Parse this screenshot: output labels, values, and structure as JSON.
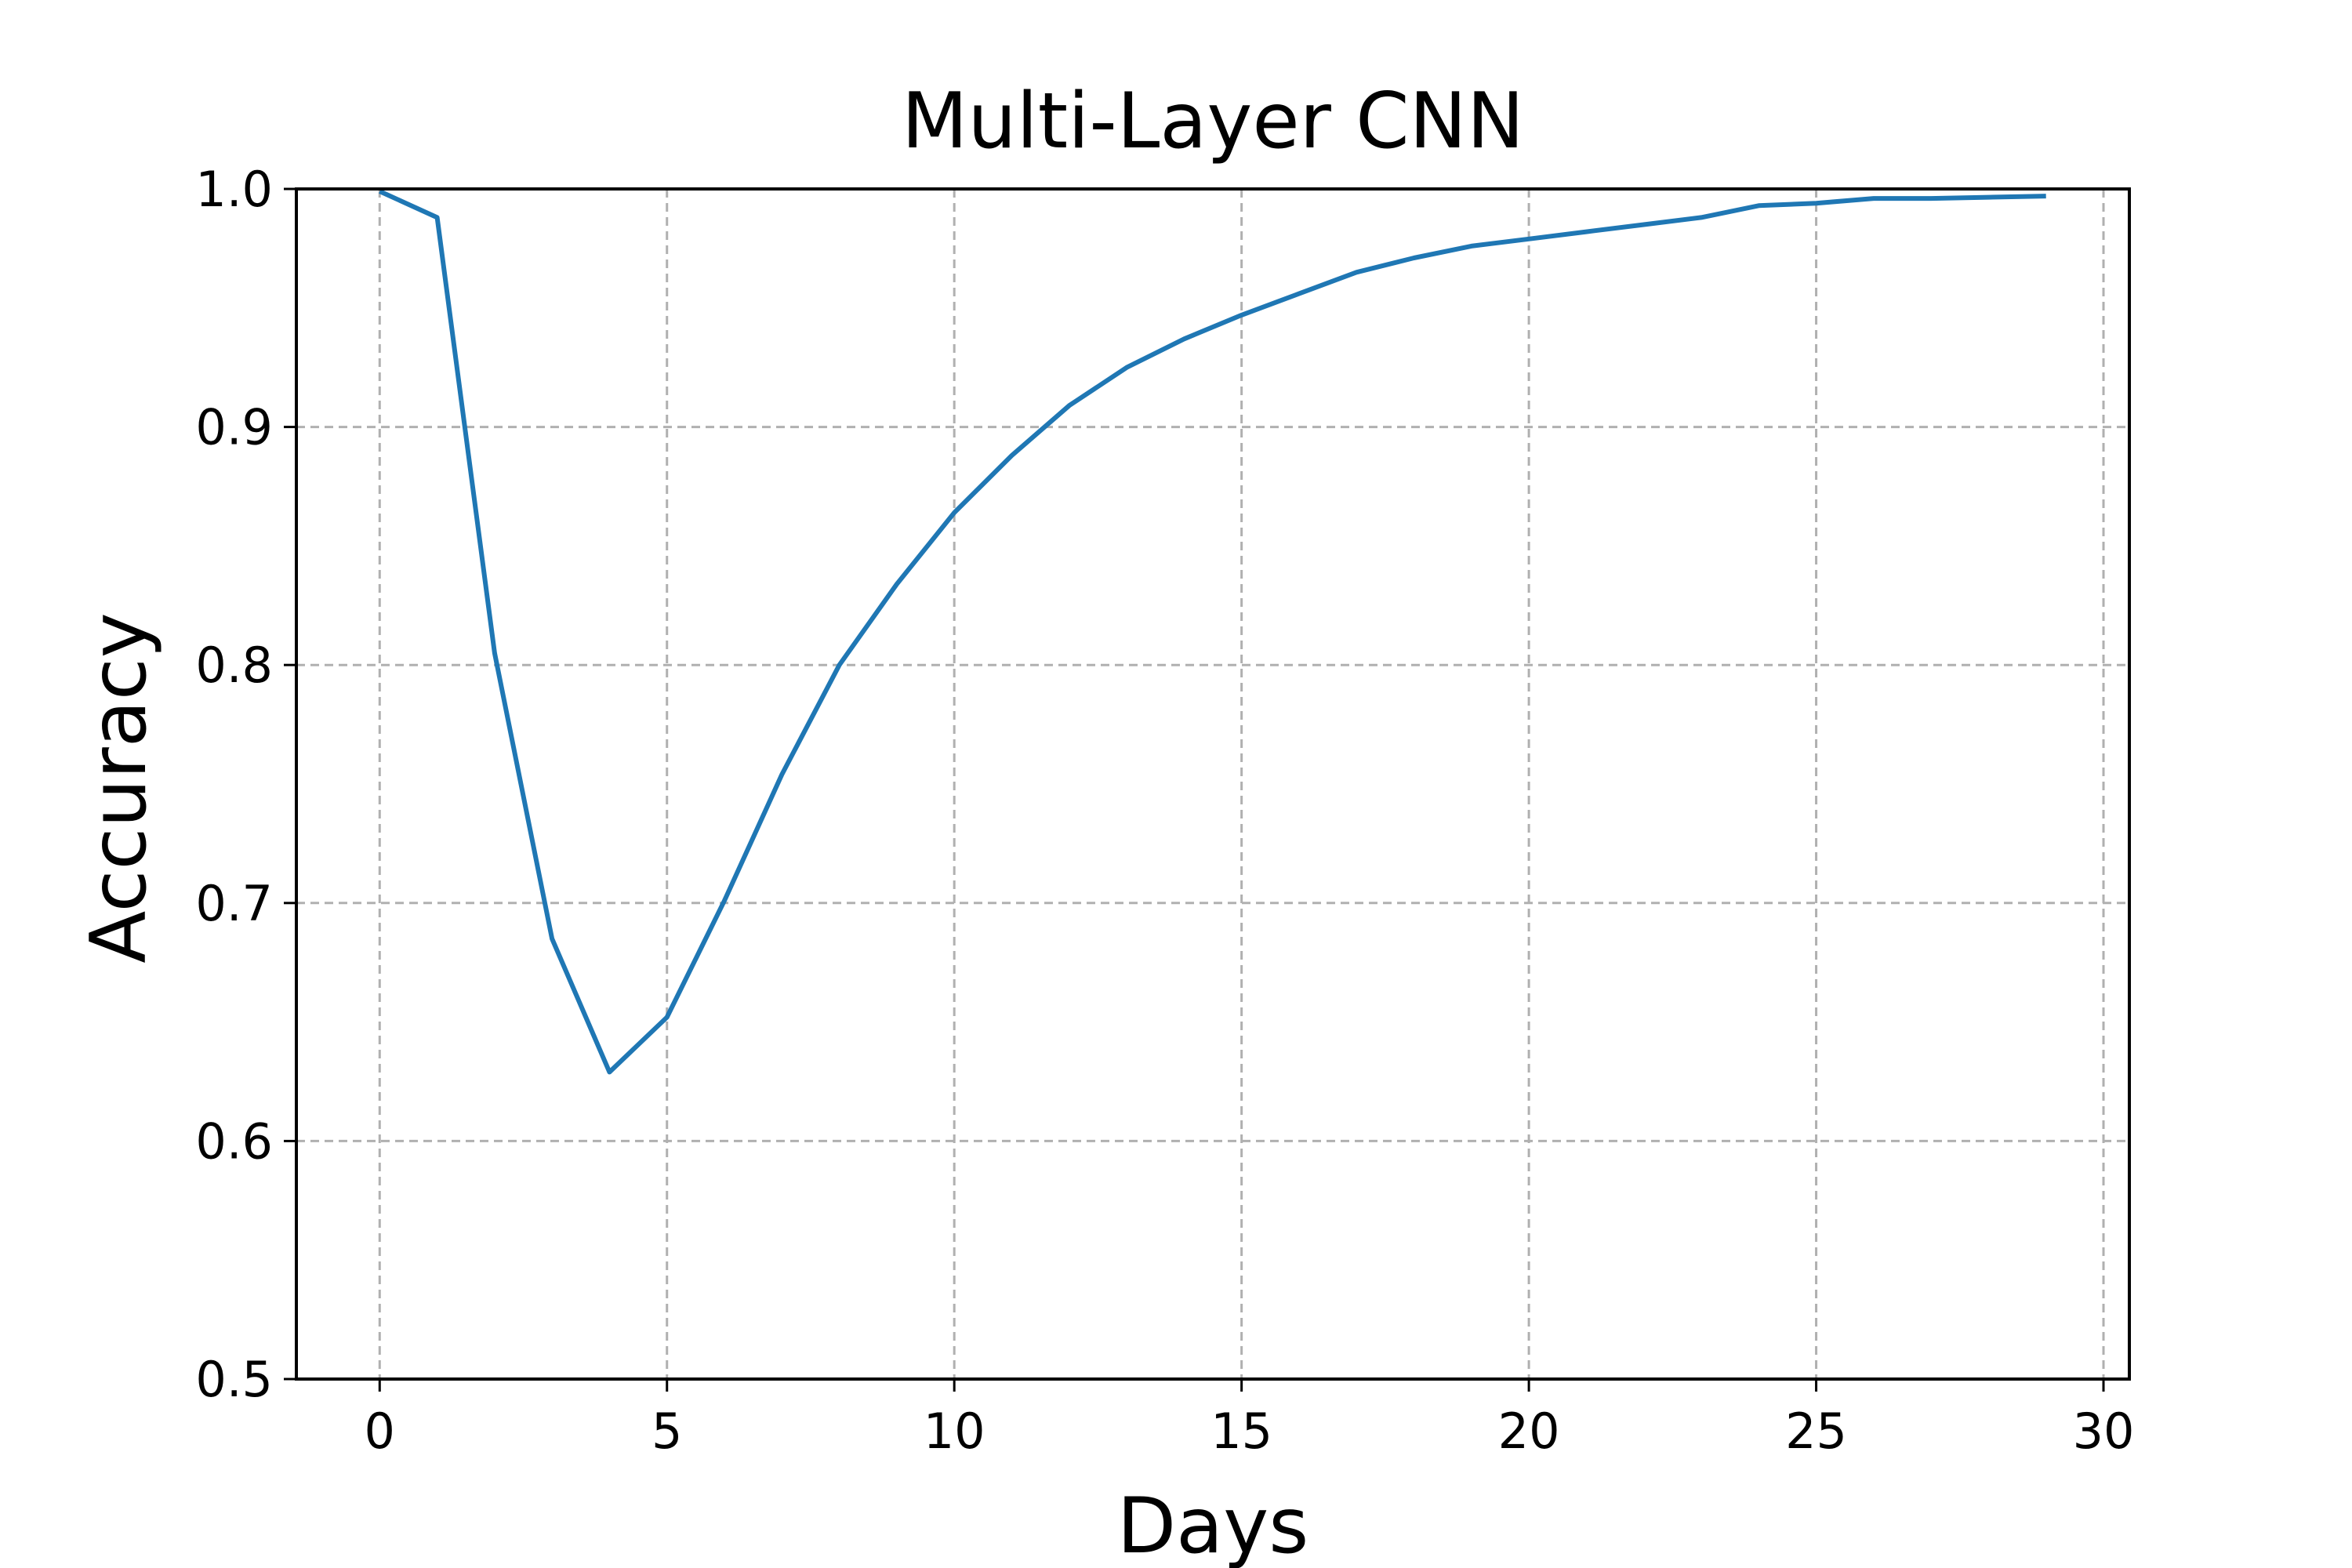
{
  "chart_data": {
    "type": "line",
    "title": "Multi-Layer CNN",
    "xlabel": "Days",
    "ylabel": "Accuracy",
    "xlim": [
      -1.45,
      30.45
    ],
    "ylim": [
      0.5,
      1.0
    ],
    "xticks": [
      0,
      5,
      10,
      15,
      20,
      25,
      30
    ],
    "yticks": [
      0.5,
      0.6,
      0.7,
      0.8,
      0.9,
      1.0
    ],
    "xtick_labels": [
      "0",
      "5",
      "10",
      "15",
      "20",
      "25",
      "30"
    ],
    "ytick_labels": [
      "0.5",
      "0.6",
      "0.7",
      "0.8",
      "0.9",
      "1.0"
    ],
    "grid": true,
    "legend": "none",
    "colors": {
      "line": "#1f77b4",
      "grid": "#b0b0b0",
      "axes": "#000000"
    },
    "series": [
      {
        "x": [
          0,
          1,
          2,
          3,
          4,
          5,
          6,
          7,
          8,
          9,
          10,
          11,
          12,
          13,
          14,
          15,
          16,
          17,
          18,
          19,
          20,
          21,
          22,
          23,
          24,
          25,
          26,
          27,
          28,
          29
        ],
        "values": [
          0.999,
          0.988,
          0.805,
          0.685,
          0.629,
          0.652,
          0.701,
          0.754,
          0.8,
          0.834,
          0.864,
          0.888,
          0.909,
          0.925,
          0.937,
          0.947,
          0.956,
          0.965,
          0.971,
          0.976,
          0.979,
          0.982,
          0.985,
          0.988,
          0.993,
          0.994,
          0.996,
          0.996,
          0.9965,
          0.997
        ]
      }
    ]
  }
}
